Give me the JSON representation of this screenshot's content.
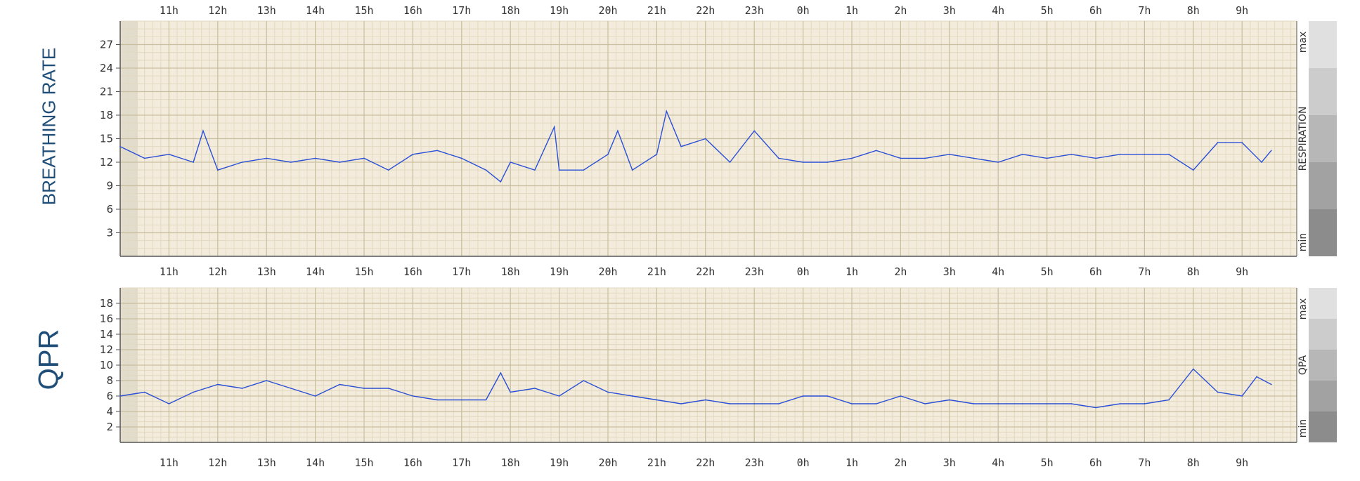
{
  "panels": [
    {
      "title": "BREATHING RATE",
      "side_label": "RESPIRATION",
      "scale_max": "max",
      "scale_min": "min"
    },
    {
      "title": "QPR",
      "side_label": "QPA",
      "scale_max": "max",
      "scale_min": "min"
    }
  ],
  "chart_data": [
    {
      "type": "line",
      "title": "BREATHING RATE",
      "x_ticks": [
        "11h",
        "12h",
        "13h",
        "14h",
        "15h",
        "16h",
        "17h",
        "18h",
        "19h",
        "20h",
        "21h",
        "22h",
        "23h",
        "0h",
        "1h",
        "2h",
        "3h",
        "4h",
        "5h",
        "6h",
        "7h",
        "8h",
        "9h"
      ],
      "y_ticks": [
        "3",
        "6",
        "9",
        "12",
        "15",
        "18",
        "21",
        "24",
        "27"
      ],
      "ylim": [
        0,
        30
      ],
      "xlim_hours": [
        10.0,
        33.6
      ],
      "grid": true,
      "series": [
        {
          "color": "#2a4fd6",
          "x_hours": [
            10.0,
            10.5,
            11.0,
            11.5,
            11.7,
            12.0,
            12.5,
            13.0,
            13.5,
            14.0,
            14.5,
            15.0,
            15.5,
            16.0,
            16.5,
            17.0,
            17.5,
            17.8,
            18.0,
            18.5,
            18.9,
            19.0,
            19.5,
            20.0,
            20.2,
            20.5,
            21.0,
            21.2,
            21.5,
            22.0,
            22.5,
            23.0,
            23.5,
            24.0,
            24.5,
            25.0,
            25.5,
            26.0,
            26.5,
            27.0,
            27.5,
            28.0,
            28.5,
            29.0,
            29.5,
            30.0,
            30.5,
            31.0,
            31.5,
            32.0,
            32.5,
            33.0,
            33.4,
            33.6
          ],
          "values": [
            14,
            12.5,
            13,
            12,
            16,
            11,
            12,
            12.5,
            12,
            12.5,
            12,
            12.5,
            11,
            13,
            13.5,
            12.5,
            11,
            9.5,
            12,
            11,
            16.5,
            11,
            11,
            13,
            16,
            11,
            13,
            18.5,
            14,
            15,
            12,
            16,
            12.5,
            12,
            12,
            12.5,
            13.5,
            12.5,
            12.5,
            13,
            12.5,
            12,
            13,
            12.5,
            13,
            12.5,
            13,
            13,
            13,
            11,
            14.5,
            14.5,
            12,
            13.5
          ]
        }
      ]
    },
    {
      "type": "line",
      "title": "QPR",
      "x_ticks": [
        "11h",
        "12h",
        "13h",
        "14h",
        "15h",
        "16h",
        "17h",
        "18h",
        "19h",
        "20h",
        "21h",
        "22h",
        "23h",
        "0h",
        "1h",
        "2h",
        "3h",
        "4h",
        "5h",
        "6h",
        "7h",
        "8h",
        "9h"
      ],
      "y_ticks": [
        "2",
        "4",
        "6",
        "8",
        "10",
        "12",
        "14",
        "16",
        "18"
      ],
      "ylim": [
        0,
        20
      ],
      "xlim_hours": [
        10.0,
        33.6
      ],
      "grid": true,
      "series": [
        {
          "color": "#2a4fd6",
          "x_hours": [
            10.0,
            10.5,
            11.0,
            11.5,
            12.0,
            12.5,
            13.0,
            13.5,
            14.0,
            14.5,
            15.0,
            15.5,
            16.0,
            16.5,
            17.0,
            17.5,
            17.8,
            18.0,
            18.5,
            19.0,
            19.5,
            20.0,
            20.5,
            21.0,
            21.5,
            22.0,
            22.5,
            23.0,
            23.5,
            24.0,
            24.5,
            25.0,
            25.5,
            26.0,
            26.5,
            27.0,
            27.5,
            28.0,
            28.5,
            29.0,
            29.5,
            30.0,
            30.5,
            31.0,
            31.5,
            32.0,
            32.5,
            33.0,
            33.3,
            33.6
          ],
          "values": [
            6,
            6.5,
            5,
            6.5,
            7.5,
            7,
            8,
            7,
            6,
            7.5,
            7,
            7,
            6,
            5.5,
            5.5,
            5.5,
            9,
            6.5,
            7,
            6,
            8,
            6.5,
            6,
            5.5,
            5,
            5.5,
            5,
            5,
            5,
            6,
            6,
            5,
            5,
            6,
            5,
            5.5,
            5,
            5,
            5,
            5,
            5,
            4.5,
            5,
            5,
            5.5,
            9.5,
            6.5,
            6,
            8.5,
            7.5
          ]
        }
      ]
    }
  ]
}
